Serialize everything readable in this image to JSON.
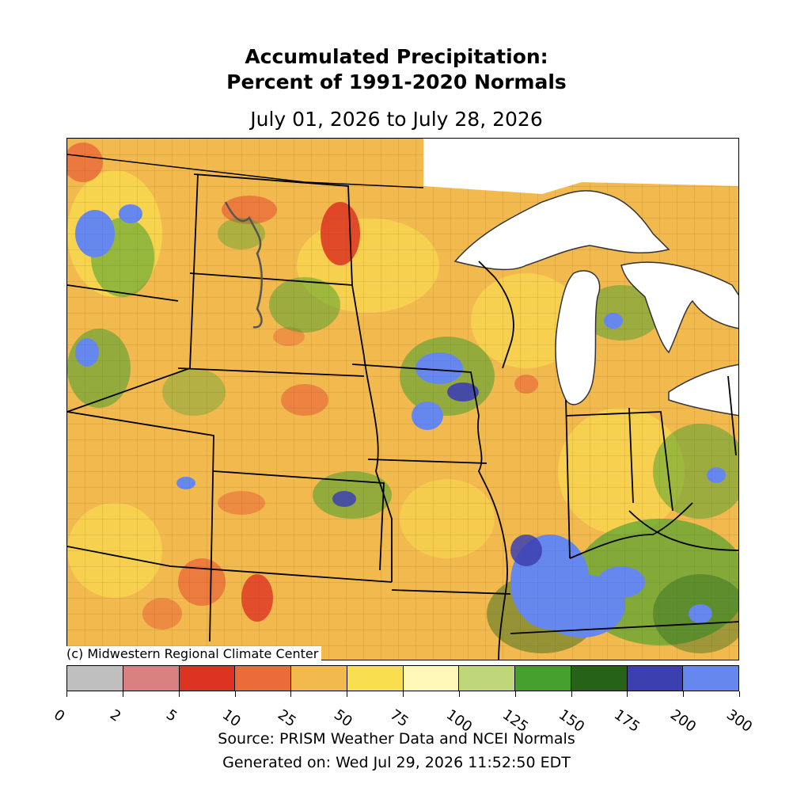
{
  "title_line1": "Accumulated Precipitation:",
  "title_line2": "Percent of 1991-2020 Normals",
  "date_range": "July 01, 2026 to July 28, 2026",
  "credit": "(c) Midwestern Regional Climate Center",
  "source": "Source: PRISM Weather Data and NCEI Normals",
  "generated": "Generated on: Wed Jul 29, 2026 11:52:50 EDT",
  "legend": {
    "ticks": [
      "0",
      "2",
      "5",
      "10",
      "25",
      "50",
      "75",
      "100",
      "125",
      "150",
      "175",
      "200",
      "300"
    ],
    "colors": [
      "#bfbfbf",
      "#d98080",
      "#dd3322",
      "#ea6c3a",
      "#f2b94f",
      "#f9df4f",
      "#fff8b8",
      "#c0d67a",
      "#46a02e",
      "#266318",
      "#3c3fb0",
      "#6688ee"
    ]
  },
  "map": {
    "water_color": "#ffffff",
    "land_base_color": "#f2b94f",
    "state_line_color": "#000000",
    "county_line_color": "#555555"
  }
}
